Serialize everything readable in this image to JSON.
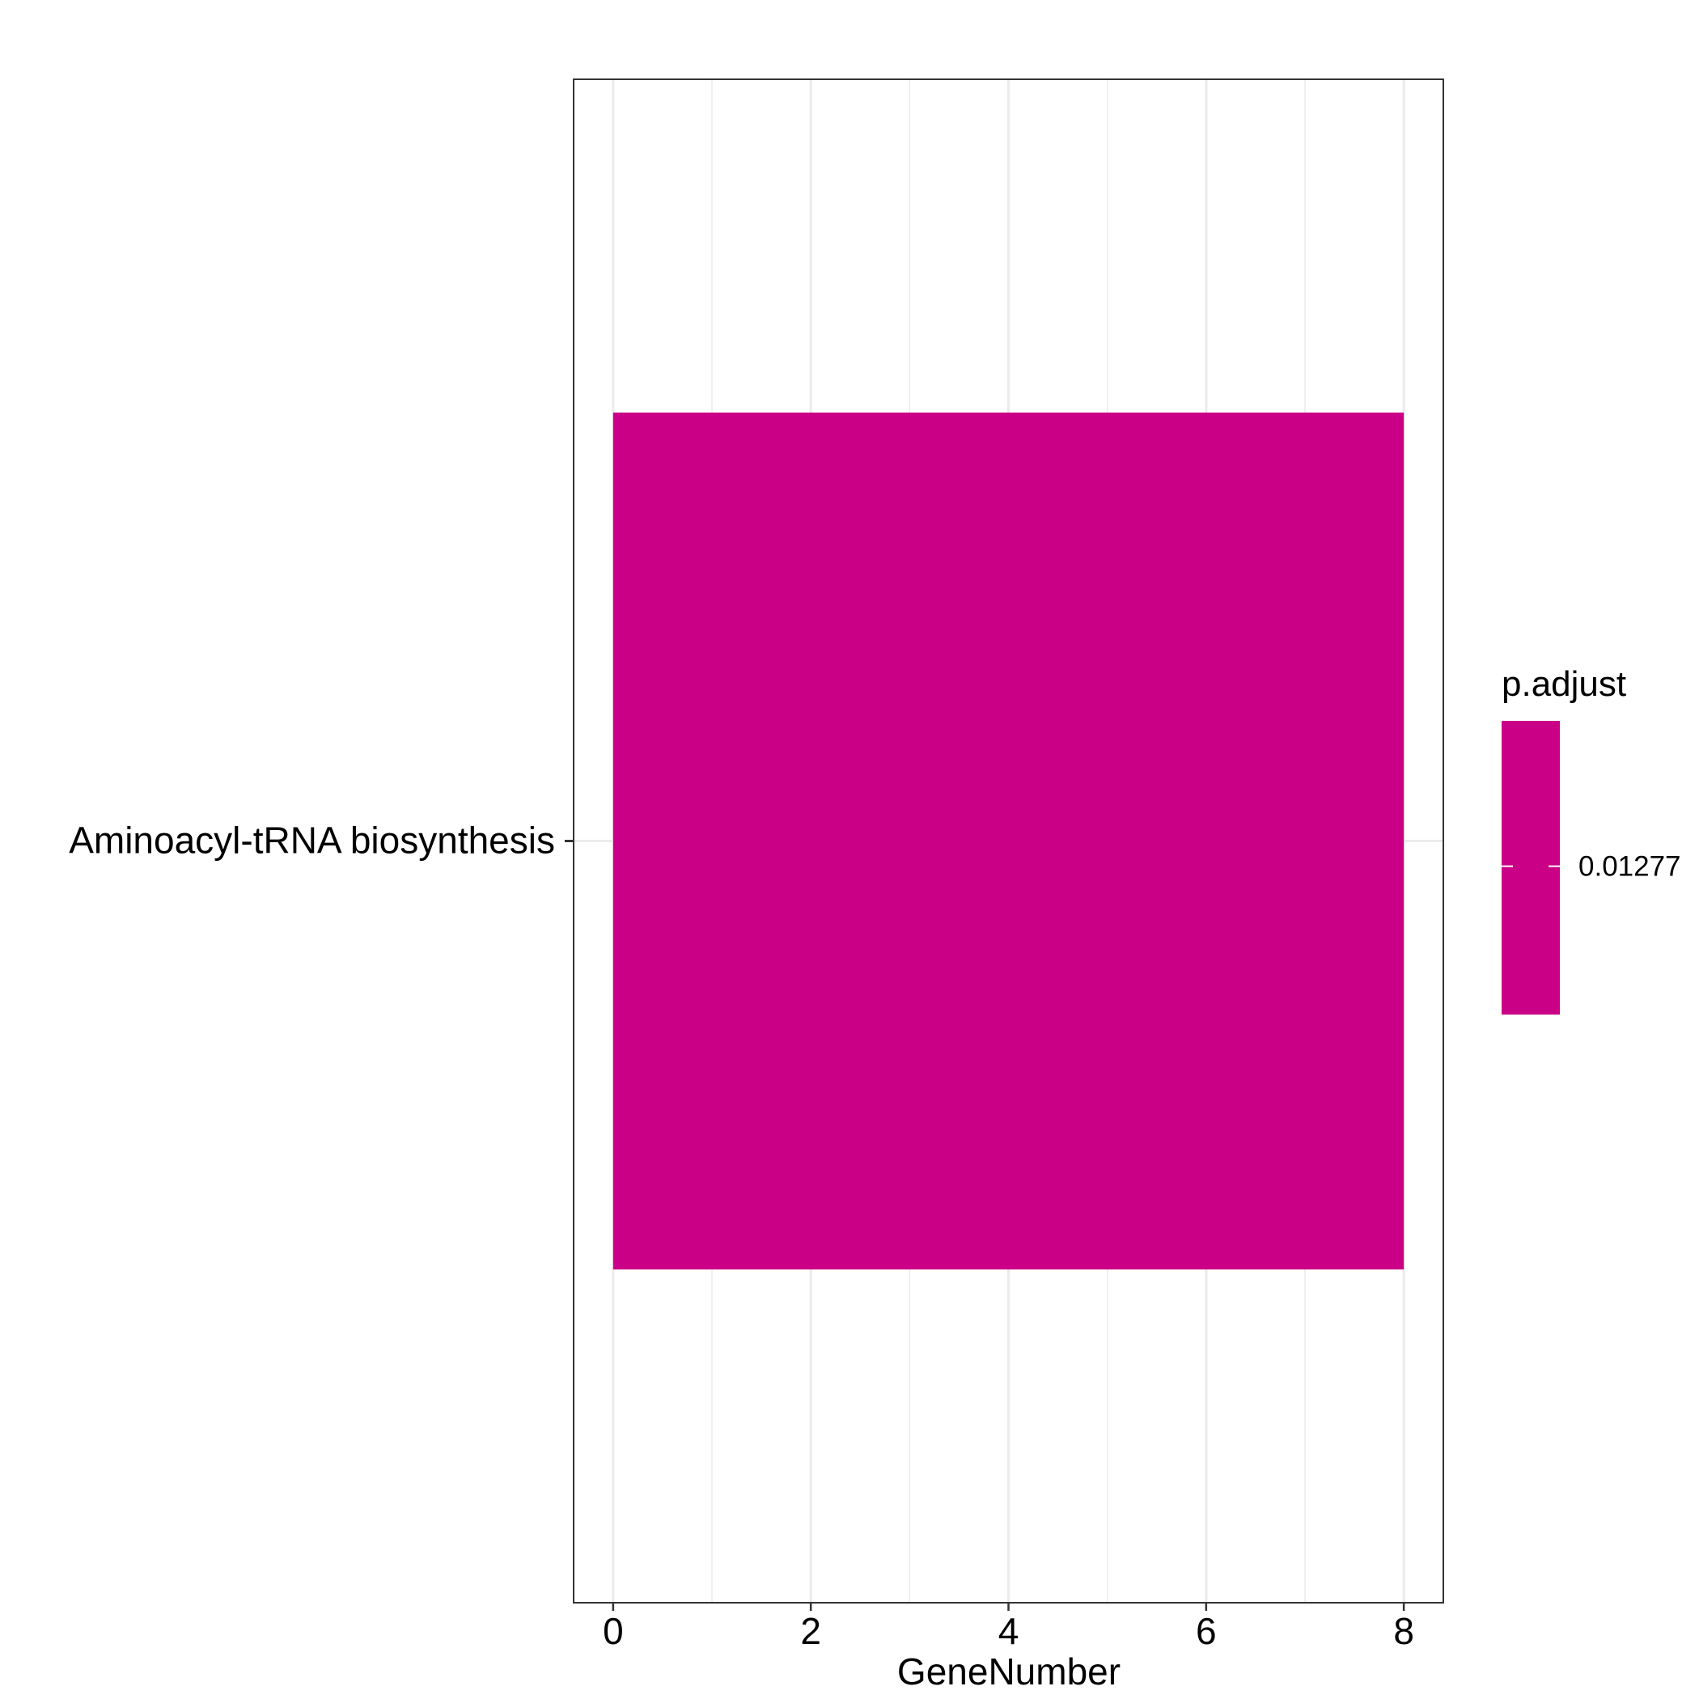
{
  "chart_data": {
    "type": "bar",
    "orientation": "horizontal",
    "categories": [
      "Aminoacyl-tRNA biosynthesis"
    ],
    "values": [
      8
    ],
    "xlabel": "GeneNumber",
    "ylabel": "",
    "xlim": [
      -0.4,
      8.4
    ],
    "xticks": [
      0,
      2,
      4,
      6,
      8
    ],
    "grid": true,
    "legend": {
      "title": "p.adjust",
      "values": [
        0.01277
      ],
      "labels": [
        "0.01277"
      ],
      "placement": "right"
    },
    "colors": {
      "bar": "#CA0086",
      "panel_border": "#333333",
      "grid": "#EBEBEB"
    }
  }
}
